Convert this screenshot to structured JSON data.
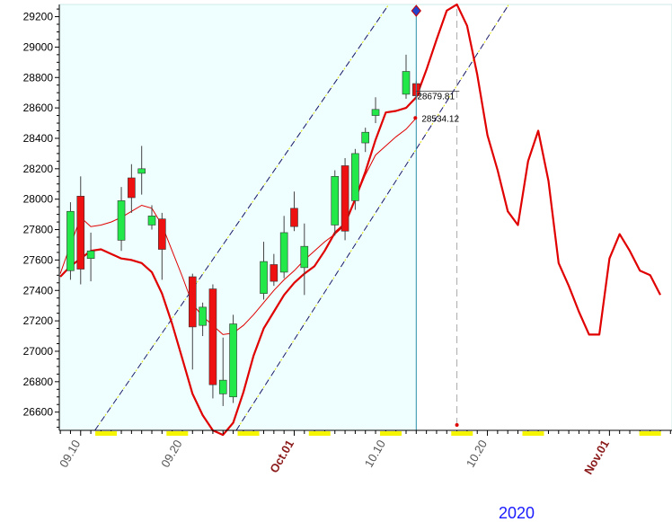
{
  "chart_data": {
    "type": "candlestick",
    "year_label": "2020",
    "yticks": [
      26600,
      26800,
      27000,
      27200,
      27400,
      27600,
      27800,
      28000,
      28200,
      28400,
      28600,
      28800,
      29000,
      29200
    ],
    "xticks": [
      {
        "label": "09.10",
        "day": 10,
        "bold": false
      },
      {
        "label": "09.20",
        "day": 20,
        "bold": false
      },
      {
        "label": "Oct.01",
        "day": 31,
        "bold": true
      },
      {
        "label": "10.10",
        "day": 40,
        "bold": false
      },
      {
        "label": "10.20",
        "day": 50,
        "bold": false
      },
      {
        "label": "Nov.01",
        "day": 62,
        "bold": true
      }
    ],
    "candles": [
      {
        "day": 9,
        "open": 27530,
        "close": 27920,
        "high": 27980,
        "low": 27470
      },
      {
        "day": 10,
        "open": 28020,
        "close": 27540,
        "high": 28150,
        "low": 27440
      },
      {
        "day": 11,
        "open": 27610,
        "close": 27660,
        "high": 27780,
        "low": 27460
      },
      {
        "day": 14,
        "open": 27730,
        "close": 27990,
        "high": 28080,
        "low": 27660
      },
      {
        "day": 15,
        "open": 28140,
        "close": 28010,
        "high": 28230,
        "low": 27910
      },
      {
        "day": 16,
        "open": 28170,
        "close": 28200,
        "high": 28350,
        "low": 28030
      },
      {
        "day": 17,
        "open": 27830,
        "close": 27890,
        "high": 27960,
        "low": 27800
      },
      {
        "day": 18,
        "open": 27870,
        "close": 27670,
        "high": 27910,
        "low": 27470
      },
      {
        "day": 21,
        "open": 27490,
        "close": 27160,
        "high": 27510,
        "low": 26880
      },
      {
        "day": 22,
        "open": 27170,
        "close": 27290,
        "high": 27320,
        "low": 27100
      },
      {
        "day": 23,
        "open": 27410,
        "close": 26780,
        "high": 27440,
        "low": 26690
      },
      {
        "day": 24,
        "open": 26720,
        "close": 26810,
        "high": 27090,
        "low": 26640
      },
      {
        "day": 25,
        "open": 26700,
        "close": 27180,
        "high": 27240,
        "low": 26660
      },
      {
        "day": 28,
        "open": 27380,
        "close": 27590,
        "high": 27720,
        "low": 27340
      },
      {
        "day": 29,
        "open": 27570,
        "close": 27460,
        "high": 27640,
        "low": 27430
      },
      {
        "day": 30,
        "open": 27520,
        "close": 27780,
        "high": 27890,
        "low": 27480
      },
      {
        "day": 31,
        "open": 27940,
        "close": 27820,
        "high": 28050,
        "low": 27790
      },
      {
        "day": 32,
        "open": 27550,
        "close": 27690,
        "high": 27840,
        "low": 27370
      },
      {
        "day": 35,
        "open": 27830,
        "close": 28150,
        "high": 28190,
        "low": 27760
      },
      {
        "day": 36,
        "open": 28220,
        "close": 27790,
        "high": 28270,
        "low": 27730
      },
      {
        "day": 37,
        "open": 27990,
        "close": 28300,
        "high": 28330,
        "low": 27930
      },
      {
        "day": 38,
        "open": 28370,
        "close": 28440,
        "high": 28470,
        "low": 28310
      },
      {
        "day": 39,
        "open": 28550,
        "close": 28590,
        "high": 28670,
        "low": 28500
      },
      {
        "day": 42,
        "open": 28690,
        "close": 28840,
        "high": 28950,
        "low": 28660
      },
      {
        "day": 43,
        "open": 28760,
        "close": 28680,
        "high": 28780,
        "low": 28650
      }
    ],
    "ma_fast": [
      [
        8,
        27490
      ],
      [
        9,
        27560
      ],
      [
        10,
        27610
      ],
      [
        11,
        27660
      ],
      [
        12,
        27670
      ],
      [
        13,
        27640
      ],
      [
        14,
        27610
      ],
      [
        15,
        27600
      ],
      [
        16,
        27580
      ],
      [
        17,
        27520
      ],
      [
        18,
        27380
      ],
      [
        19,
        27180
      ],
      [
        20,
        26950
      ],
      [
        21,
        26720
      ],
      [
        22,
        26580
      ],
      [
        23,
        26480
      ],
      [
        24,
        26450
      ],
      [
        25,
        26530
      ],
      [
        26,
        26730
      ],
      [
        27,
        26970
      ],
      [
        28,
        27150
      ],
      [
        29,
        27260
      ],
      [
        30,
        27370
      ],
      [
        31,
        27450
      ],
      [
        32,
        27510
      ],
      [
        33,
        27560
      ],
      [
        34,
        27660
      ],
      [
        35,
        27780
      ],
      [
        36,
        27840
      ],
      [
        37,
        28000
      ],
      [
        38,
        28180
      ],
      [
        39,
        28390
      ],
      [
        40,
        28570
      ],
      [
        41,
        28580
      ],
      [
        42,
        28600
      ],
      [
        43,
        28670
      ],
      [
        44,
        28850
      ],
      [
        45,
        29050
      ],
      [
        46,
        29240
      ],
      [
        47,
        29280
      ],
      [
        48,
        29140
      ],
      [
        49,
        28820
      ],
      [
        50,
        28420
      ],
      [
        51,
        28190
      ],
      [
        52,
        27920
      ],
      [
        53,
        27830
      ],
      [
        54,
        28250
      ],
      [
        55,
        28450
      ],
      [
        56,
        28120
      ],
      [
        57,
        27580
      ],
      [
        58,
        27430
      ],
      [
        59,
        27260
      ],
      [
        60,
        27110
      ],
      [
        61,
        27110
      ],
      [
        62,
        27610
      ],
      [
        63,
        27770
      ],
      [
        64,
        27660
      ],
      [
        65,
        27530
      ],
      [
        66,
        27500
      ],
      [
        67,
        27370
      ]
    ],
    "ma_slow": [
      [
        8,
        27510
      ],
      [
        9,
        27700
      ],
      [
        10,
        27880
      ],
      [
        11,
        27820
      ],
      [
        12,
        27830
      ],
      [
        13,
        27850
      ],
      [
        14,
        27880
      ],
      [
        15,
        27920
      ],
      [
        16,
        27960
      ],
      [
        17,
        27940
      ],
      [
        18,
        27830
      ],
      [
        19,
        27660
      ],
      [
        20,
        27490
      ],
      [
        21,
        27310
      ],
      [
        22,
        27230
      ],
      [
        23,
        27170
      ],
      [
        24,
        27110
      ],
      [
        25,
        27120
      ],
      [
        26,
        27170
      ],
      [
        27,
        27240
      ],
      [
        28,
        27320
      ],
      [
        29,
        27400
      ],
      [
        30,
        27470
      ],
      [
        31,
        27530
      ],
      [
        32,
        27600
      ],
      [
        33,
        27660
      ],
      [
        34,
        27720
      ],
      [
        35,
        27770
      ],
      [
        36,
        27830
      ],
      [
        37,
        28000
      ],
      [
        38,
        28160
      ],
      [
        39,
        28290
      ],
      [
        40,
        28350
      ],
      [
        41,
        28410
      ],
      [
        42,
        28460
      ],
      [
        43,
        28534.12
      ]
    ],
    "channel_upper": [
      [
        11.4,
        26480
      ],
      [
        40.3,
        29280
      ]
    ],
    "channel_lower": [
      [
        25.3,
        26480
      ],
      [
        52.1,
        29280
      ]
    ],
    "last_day": 43,
    "tooltip_close": "28679.81",
    "tooltip_ma": "28534.12",
    "forecast_peak_day": 47,
    "window_days": [
      7.9,
      68.15
    ],
    "ylim": [
      26480,
      29280
    ]
  }
}
